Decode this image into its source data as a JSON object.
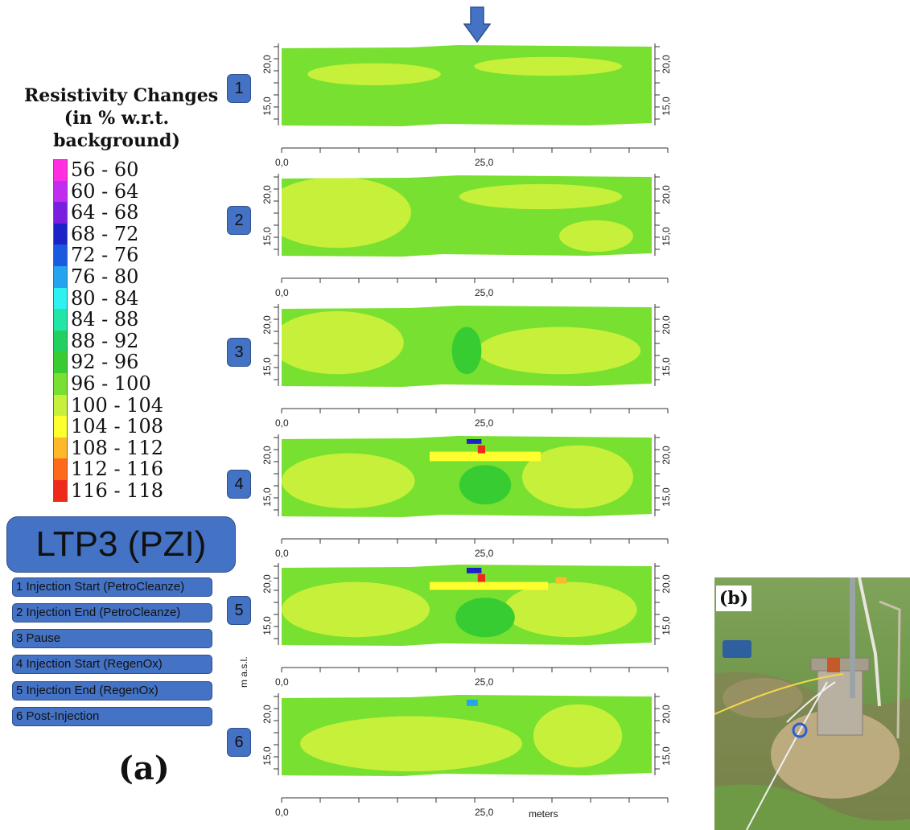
{
  "legend": {
    "title_lines": [
      "Resistivity Changes",
      "(in % w.r.t.",
      "background)"
    ],
    "items": [
      {
        "label": "56 - 60",
        "color": "#ff2ee0"
      },
      {
        "label": "60 - 64",
        "color": "#c02cf0"
      },
      {
        "label": "64 - 68",
        "color": "#7a1fe0"
      },
      {
        "label": "68 - 72",
        "color": "#1a22c8"
      },
      {
        "label": "72 - 76",
        "color": "#1a5ae0"
      },
      {
        "label": "76 - 80",
        "color": "#22a4ee"
      },
      {
        "label": "80 - 84",
        "color": "#2ef2f2"
      },
      {
        "label": "84 - 88",
        "color": "#22e6a8"
      },
      {
        "label": "88 - 92",
        "color": "#22d060"
      },
      {
        "label": "92 - 96",
        "color": "#36cc32"
      },
      {
        "label": "96 - 100",
        "color": "#78e030"
      },
      {
        "label": "100 - 104",
        "color": "#c6f03a"
      },
      {
        "label": "104 - 108",
        "color": "#ffff2e"
      },
      {
        "label": "108 - 112",
        "color": "#ffb82a"
      },
      {
        "label": "112 - 116",
        "color": "#ff6a1a"
      },
      {
        "label": "116 - 118",
        "color": "#f02a1a"
      }
    ]
  },
  "ltp_title": "LTP3 (PZI)",
  "steps": [
    "1 Injection Start (PetroCleanze)",
    "2 Injection End (PetroCleanze)",
    "3 Pause",
    "4 Injection Start (RegenOx)",
    "5 Injection End (RegenOx)",
    "6 Post-Injection"
  ],
  "panel_a_label": "(a)",
  "panel_b_label": "(b)",
  "section_numbers": [
    "1",
    "2",
    "3",
    "4",
    "5",
    "6"
  ],
  "axes": {
    "y_tick_labels": [
      "20,0",
      "15,0"
    ],
    "x_tick_labels": [
      "0,0",
      "25,0"
    ],
    "x_unit": "meters",
    "y_unit": "m a.s.l."
  },
  "colors": {
    "button_fill": "#4472c4",
    "base_green": "#78e030",
    "light_green": "#c6f03a",
    "mid_green": "#36cc32"
  },
  "icons": [
    "injection-arrow-icon"
  ]
}
